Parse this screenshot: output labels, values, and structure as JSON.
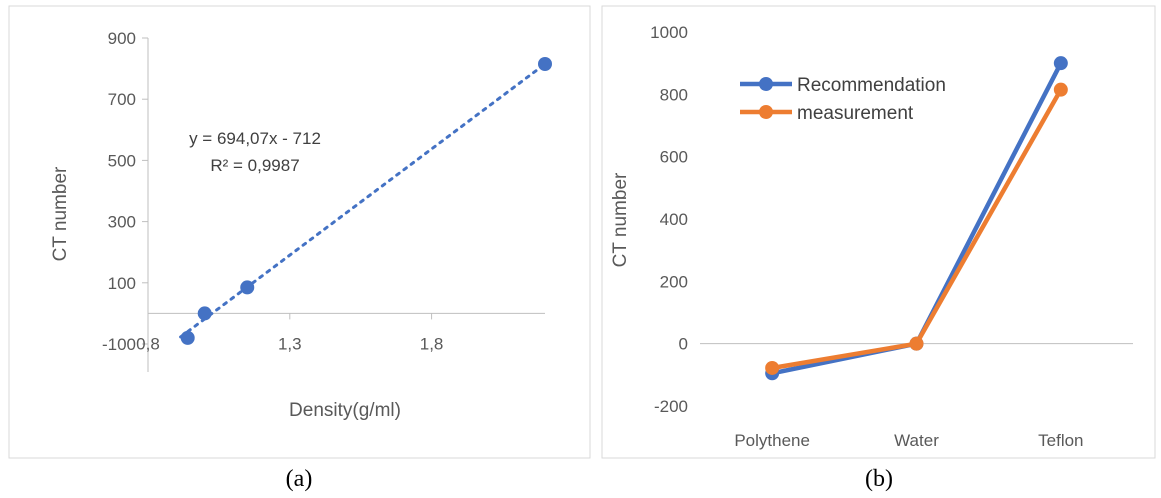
{
  "chart_data": [
    {
      "panel": "(a)",
      "type": "scatter",
      "xlabel": "Density(g/ml)",
      "ylabel": "CT number",
      "xlim": [
        0.8,
        2.2
      ],
      "ylim": [
        -100,
        900
      ],
      "xticks": [
        "0,8",
        "1,3",
        "1,8"
      ],
      "yticks": [
        "-100",
        "100",
        "300",
        "500",
        "700",
        "900"
      ],
      "points": [
        {
          "x": 0.94,
          "y": -80
        },
        {
          "x": 1.0,
          "y": 0
        },
        {
          "x": 1.15,
          "y": 85
        },
        {
          "x": 2.2,
          "y": 815
        }
      ],
      "trendline": {
        "type": "linear",
        "slope": 694.07,
        "intercept": -712,
        "style": "dotted"
      },
      "equation": "y = 694,07x - 712",
      "r_squared": "R² = 0,9987",
      "grid": false,
      "color": "#4472C4"
    },
    {
      "panel": "(b)",
      "type": "line",
      "categories": [
        "Polythene",
        "Water",
        "Teflon"
      ],
      "ylabel": "CT number",
      "ylim": [
        -200,
        1000
      ],
      "yticks": [
        "-200",
        "0",
        "200",
        "400",
        "600",
        "800",
        "1000"
      ],
      "series": [
        {
          "name": "Recommendation",
          "values": [
            -95,
            0,
            900
          ],
          "color": "#4472C4"
        },
        {
          "name": "measurement",
          "values": [
            -78,
            0,
            815
          ],
          "color": "#ED7D31"
        }
      ],
      "legend_position": "top-left",
      "grid": false
    }
  ],
  "captions": [
    "(a)",
    "(b)"
  ]
}
